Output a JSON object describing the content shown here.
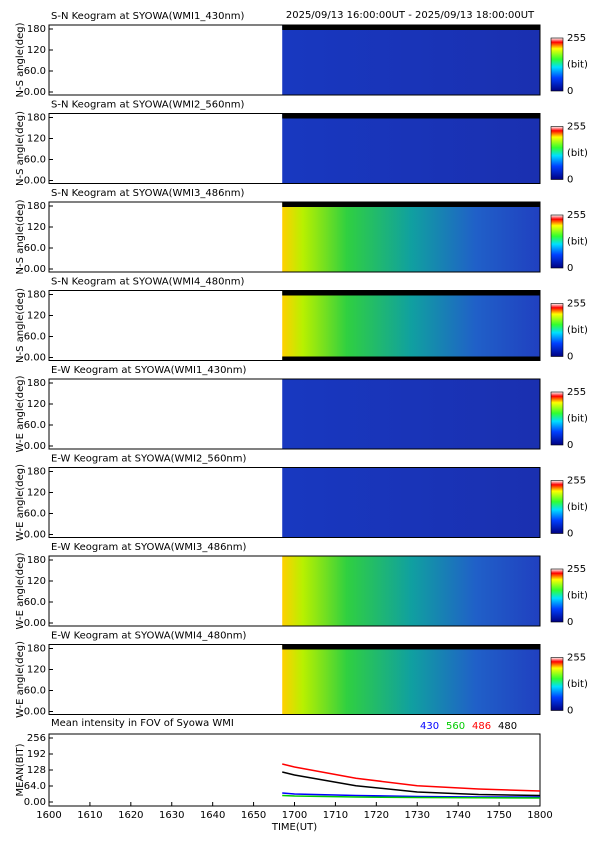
{
  "header": "2025/09/13 16:00:00UT - 2025/09/13 18:00:00UT",
  "chart_data": [
    {
      "type": "keogram",
      "title": "S-N Keogram at SYOWA(WMI1_430nm)",
      "ylabel": "N-S angle(deg)",
      "ylim": [
        0,
        180
      ],
      "yticks": [
        {
          "value": 0,
          "label": "0.00"
        },
        {
          "value": 60,
          "label": "60.0"
        },
        120,
        180
      ],
      "clim": [
        0,
        255
      ],
      "cticks": [
        0,
        255
      ],
      "clabel": "(bit)"
    },
    {
      "type": "keogram",
      "title": "S-N Keogram at SYOWA(WMI2_560nm)",
      "ylabel": "N-S angle(deg)",
      "ylim": [
        0,
        180
      ],
      "yticks": [
        {
          "value": 0,
          "label": "0.00"
        },
        {
          "value": 60,
          "label": "60.0"
        },
        120,
        180
      ],
      "clim": [
        0,
        255
      ],
      "cticks": [
        0,
        255
      ],
      "clabel": "(bit)"
    },
    {
      "type": "keogram",
      "title": "S-N Keogram at SYOWA(WMI3_486nm)",
      "ylabel": "N-S angle(deg)",
      "ylim": [
        0,
        180
      ],
      "yticks": [
        {
          "value": 0,
          "label": "0.00"
        },
        {
          "value": 60,
          "label": "60.0"
        },
        120,
        180
      ],
      "clim": [
        0,
        255
      ],
      "cticks": [
        0,
        255
      ],
      "clabel": "(bit)"
    },
    {
      "type": "keogram",
      "title": "S-N Keogram at SYOWA(WMI4_480nm)",
      "ylabel": "N-S angle(deg)",
      "ylim": [
        0,
        180
      ],
      "yticks": [
        {
          "value": 0,
          "label": "0.00"
        },
        {
          "value": 60,
          "label": "60.0"
        },
        120,
        180
      ],
      "clim": [
        0,
        255
      ],
      "cticks": [
        0,
        255
      ],
      "clabel": "(bit)"
    },
    {
      "type": "keogram",
      "title": "E-W Keogram at SYOWA(WMI1_430nm)",
      "ylabel": "W-E angle(deg)",
      "ylim": [
        0,
        180
      ],
      "yticks": [
        {
          "value": 0,
          "label": "0.00"
        },
        {
          "value": 60,
          "label": "60.0"
        },
        120,
        180
      ],
      "clim": [
        0,
        255
      ],
      "cticks": [
        0,
        255
      ],
      "clabel": "(bit)"
    },
    {
      "type": "keogram",
      "title": "E-W Keogram at SYOWA(WMI2_560nm)",
      "ylabel": "W-E angle(deg)",
      "ylim": [
        0,
        180
      ],
      "yticks": [
        {
          "value": 0,
          "label": "0.00"
        },
        {
          "value": 60,
          "label": "60.0"
        },
        120,
        180
      ],
      "clim": [
        0,
        255
      ],
      "cticks": [
        0,
        255
      ],
      "clabel": "(bit)"
    },
    {
      "type": "keogram",
      "title": "E-W Keogram at SYOWA(WMI3_486nm)",
      "ylabel": "W-E angle(deg)",
      "ylim": [
        0,
        180
      ],
      "yticks": [
        {
          "value": 0,
          "label": "0.00"
        },
        {
          "value": 60,
          "label": "60.0"
        },
        120,
        180
      ],
      "clim": [
        0,
        255
      ],
      "cticks": [
        0,
        255
      ],
      "clabel": "(bit)"
    },
    {
      "type": "keogram",
      "title": "E-W Keogram at SYOWA(WMI4_480nm)",
      "ylabel": "W-E angle(deg)",
      "ylim": [
        0,
        180
      ],
      "yticks": [
        {
          "value": 0,
          "label": "0.00"
        },
        {
          "value": 60,
          "label": "60.0"
        },
        120,
        180
      ],
      "clim": [
        0,
        255
      ],
      "cticks": [
        0,
        255
      ],
      "clabel": "(bit)"
    },
    {
      "type": "line",
      "title": "Mean intensity in FOV of Syowa WMI",
      "ylabel": "MEAN(BIT)",
      "xlabel": "TIME(UT)",
      "xlim": [
        16,
        18
      ],
      "ylim": [
        0,
        256
      ],
      "xticks": [
        {
          "value": 16,
          "label": "1600"
        },
        {
          "value": 16.1667,
          "label": "1610"
        },
        {
          "value": 16.3333,
          "label": "1620"
        },
        {
          "value": 16.5,
          "label": "1630"
        },
        {
          "value": 16.6667,
          "label": "1640"
        },
        {
          "value": 16.8333,
          "label": "1650"
        },
        {
          "value": 17,
          "label": "1700"
        },
        {
          "value": 17.1667,
          "label": "1710"
        },
        {
          "value": 17.3333,
          "label": "1720"
        },
        {
          "value": 17.5,
          "label": "1730"
        },
        {
          "value": 17.6667,
          "label": "1740"
        },
        {
          "value": 17.8333,
          "label": "1750"
        },
        {
          "value": 18,
          "label": "1800"
        }
      ],
      "yticks": [
        {
          "value": 0,
          "label": "0.00"
        },
        {
          "value": 64,
          "label": "64.0"
        },
        128,
        192,
        256
      ],
      "x": [
        16.95,
        17,
        17.25,
        17.5,
        17.75,
        18
      ],
      "series": [
        {
          "name": "430",
          "color": "#0000ff",
          "values": [
            36,
            32,
            26,
            22,
            20,
            20
          ]
        },
        {
          "name": "560",
          "color": "#00cc00",
          "values": [
            26,
            24,
            20,
            18,
            17,
            16
          ]
        },
        {
          "name": "486",
          "color": "#ff0000",
          "values": [
            152,
            140,
            95,
            65,
            52,
            44
          ]
        },
        {
          "name": "480",
          "color": "#000000",
          "values": [
            120,
            108,
            65,
            40,
            30,
            26
          ]
        }
      ]
    }
  ]
}
